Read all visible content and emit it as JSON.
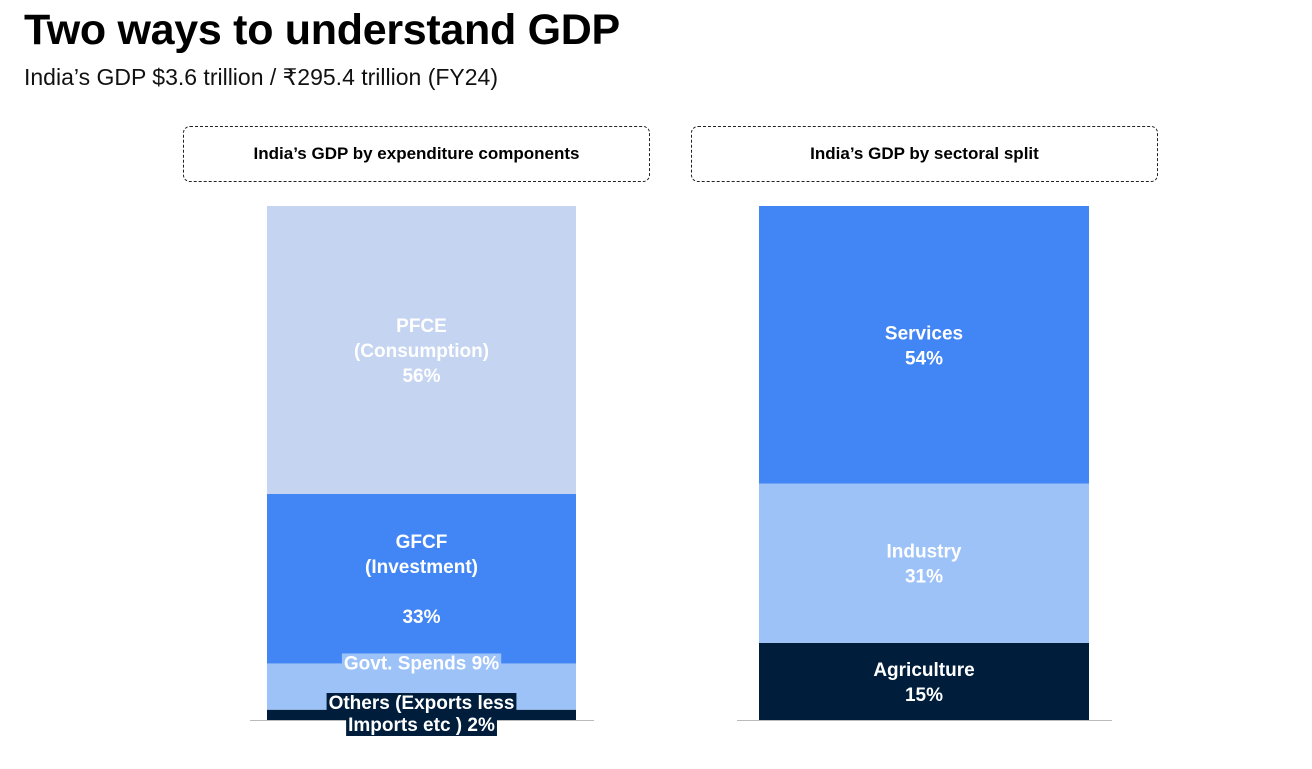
{
  "title": "Two ways to understand GDP",
  "subtitle": "India’s GDP $3.6 trillion / ₹295.4 trillion (FY24)",
  "chart_data": [
    {
      "type": "bar",
      "stacked": true,
      "title": "India’s GDP by expenditure components",
      "unit": "%",
      "ylim": [
        0,
        100
      ],
      "segments": [
        {
          "name": "Others (Exports less Imports etc )",
          "value": 2,
          "label_lines": [
            "Others (Exports less",
            "Imports etc ) 2%"
          ],
          "color": "#001e3c",
          "text_color": "#ffffff",
          "highlight": "#001e3c"
        },
        {
          "name": "Govt. Spends",
          "value": 9,
          "label_lines": [
            "Govt. Spends 9%"
          ],
          "color": "#9dc2f8",
          "text_color": "#ffffff",
          "highlight": "#9dc2f8"
        },
        {
          "name": "GFCF (Investment)",
          "value": 33,
          "label_lines": [
            "GFCF",
            "(Investment)",
            "",
            "33%"
          ],
          "color": "#4285f4",
          "text_color": "#ffffff"
        },
        {
          "name": "PFCE (Consumption)",
          "value": 56,
          "label_lines": [
            "PFCE",
            "(Consumption)",
            "56%"
          ],
          "color": "#c4d4f1",
          "text_color": "#ffffff"
        }
      ]
    },
    {
      "type": "bar",
      "stacked": true,
      "title": "India’s GDP by sectoral split",
      "unit": "%",
      "ylim": [
        0,
        100
      ],
      "segments": [
        {
          "name": "Agriculture",
          "value": 15,
          "label_lines": [
            "Agriculture",
            "15%"
          ],
          "color": "#001e3c",
          "text_color": "#ffffff"
        },
        {
          "name": "Industry",
          "value": 31,
          "label_lines": [
            "Industry",
            "31%"
          ],
          "color": "#9dc2f8",
          "text_color": "#ffffff"
        },
        {
          "name": "Services",
          "value": 54,
          "label_lines": [
            "Services",
            "54%"
          ],
          "color": "#4285f4",
          "text_color": "#ffffff"
        }
      ]
    }
  ]
}
